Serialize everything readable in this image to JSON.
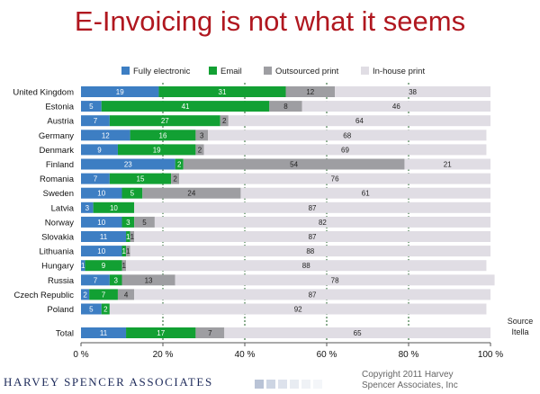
{
  "page": {
    "title": "E-Invoicing is not what it seems",
    "source_line1": "Source",
    "source_line2": "Itella",
    "company": "HARVEY SPENCER ASSOCIATES",
    "copyright_line1": "Copyright 2011 Harvey",
    "copyright_line2": "Spencer Associates, Inc"
  },
  "chart_data": {
    "type": "bar",
    "orientation": "horizontal",
    "stacked": true,
    "categories": [
      "United Kingdom",
      "Estonia",
      "Austria",
      "Germany",
      "Denmark",
      "Finland",
      "Romania",
      "Sweden",
      "Latvia",
      "Norway",
      "Slovakia",
      "Lithuania",
      "Hungary",
      "Russia",
      "Czech Republic",
      "Poland",
      "Total"
    ],
    "series": [
      {
        "name": "Fully electronic",
        "color": "#3d7ec3",
        "values": [
          19,
          5,
          7,
          12,
          9,
          23,
          7,
          10,
          3,
          10,
          11,
          10,
          1,
          7,
          2,
          5,
          11
        ]
      },
      {
        "name": "Email",
        "color": "#12a033",
        "values": [
          31,
          41,
          27,
          16,
          19,
          2,
          15,
          5,
          10,
          3,
          1,
          1,
          9,
          3,
          7,
          2,
          17
        ]
      },
      {
        "name": "Outsourced print",
        "color": "#9e9ea2",
        "values": [
          12,
          8,
          2,
          3,
          2,
          54,
          2,
          24,
          0,
          5,
          1,
          1,
          1,
          13,
          4,
          0,
          7
        ]
      },
      {
        "name": "In-house print",
        "color": "#e0dde4",
        "values": [
          38,
          46,
          64,
          68,
          69,
          21,
          76,
          61,
          87,
          82,
          87,
          88,
          88,
          78,
          87,
          92,
          65
        ]
      }
    ],
    "labels": [
      [
        "19",
        "31",
        "12",
        "38"
      ],
      [
        "5",
        "41",
        "8",
        "46"
      ],
      [
        "7",
        "27",
        "2",
        "64"
      ],
      [
        "12",
        "16",
        "3",
        "68"
      ],
      [
        "9",
        "19",
        "2",
        "69"
      ],
      [
        "23",
        "2",
        "54",
        "21"
      ],
      [
        "7",
        "15",
        "2",
        "76"
      ],
      [
        "10",
        "5",
        "24",
        "61"
      ],
      [
        "3",
        "10",
        "",
        "87"
      ],
      [
        "10",
        "3",
        "5",
        "82"
      ],
      [
        "11",
        "1",
        "1",
        "87"
      ],
      [
        "10",
        "1",
        "1",
        "88"
      ],
      [
        "1",
        "9",
        "1",
        "88"
      ],
      [
        "7",
        "3",
        "13",
        "78"
      ],
      [
        "2",
        "7",
        "4",
        "87"
      ],
      [
        "5",
        "2",
        "",
        "92"
      ],
      [
        "11",
        "17",
        "7",
        "65"
      ]
    ],
    "xlim": [
      0,
      100
    ],
    "xticks": [
      "0 %",
      "20 %",
      "40 %",
      "60 %",
      "80 %",
      "100 %"
    ],
    "xtick_values": [
      0,
      20,
      40,
      60,
      80,
      100
    ],
    "legend_position": "top",
    "grid": true
  }
}
